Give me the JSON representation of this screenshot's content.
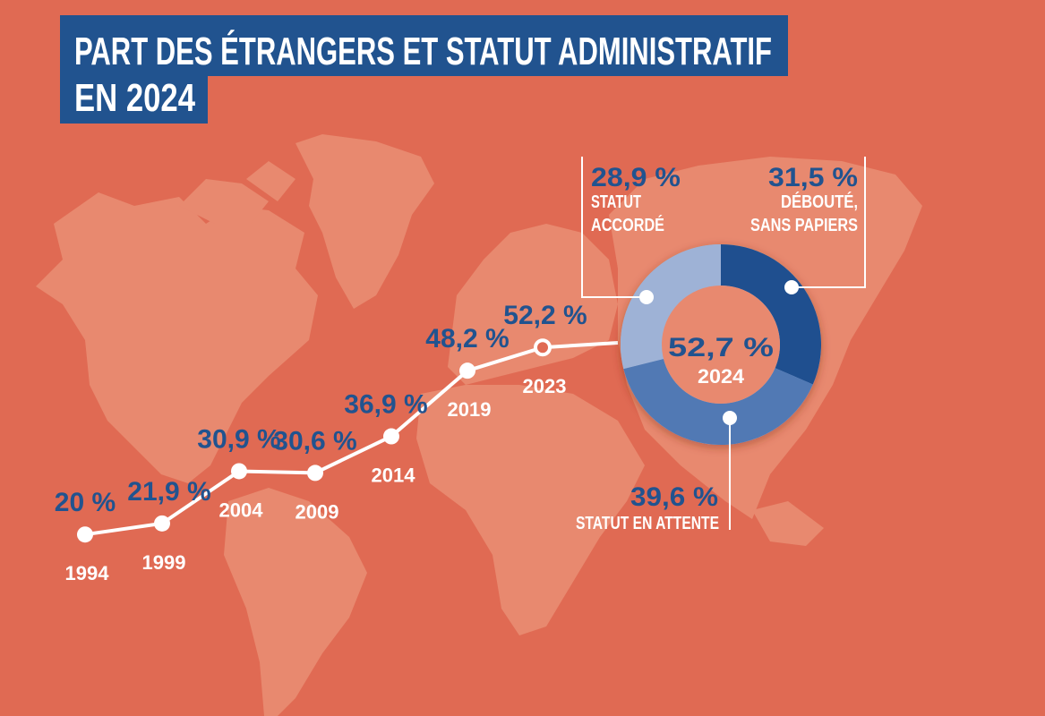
{
  "title": {
    "line1": "PART DES ÉTRANGERS ET STATUT ADMINISTRATIF",
    "line2": "EN 2024"
  },
  "colors": {
    "background": "#e06a53",
    "map": "#e8896f",
    "title_bg": "#21538f",
    "value_text": "#21538f",
    "line": "#ffffff",
    "debouté": "#1f4f8f",
    "attente": "#5179b4",
    "accorde": "#9eb2d6"
  },
  "chart_data": [
    {
      "type": "line",
      "unit": "%",
      "categories": [
        "1994",
        "1999",
        "2004",
        "2009",
        "2014",
        "2019",
        "2023"
      ],
      "values": [
        20,
        21.9,
        30.9,
        30.6,
        36.9,
        48.2,
        52.2
      ],
      "value_labels": [
        "20 %",
        "21,9 %",
        "30,9 %",
        "30,6 %",
        "36,9 %",
        "48,2 %",
        "52,2 %"
      ],
      "markers": true
    },
    {
      "type": "pie",
      "donut": true,
      "center_value": "52,7 %",
      "center_label": "2024",
      "slices": [
        {
          "key": "deboute",
          "value": 31.5,
          "label": "31,5 %",
          "name_lines": [
            "DÉBOUTÉ,",
            "SANS PAPIERS"
          ],
          "color": "#1f4f8f"
        },
        {
          "key": "attente",
          "value": 39.6,
          "label": "39,6 %",
          "name_lines": [
            "STATUT EN ATTENTE"
          ],
          "color": "#5179b4"
        },
        {
          "key": "accorde",
          "value": 28.9,
          "label": "28,9 %",
          "name_lines": [
            "STATUT",
            "ACCORDÉ"
          ],
          "color": "#9eb2d6"
        }
      ]
    }
  ]
}
